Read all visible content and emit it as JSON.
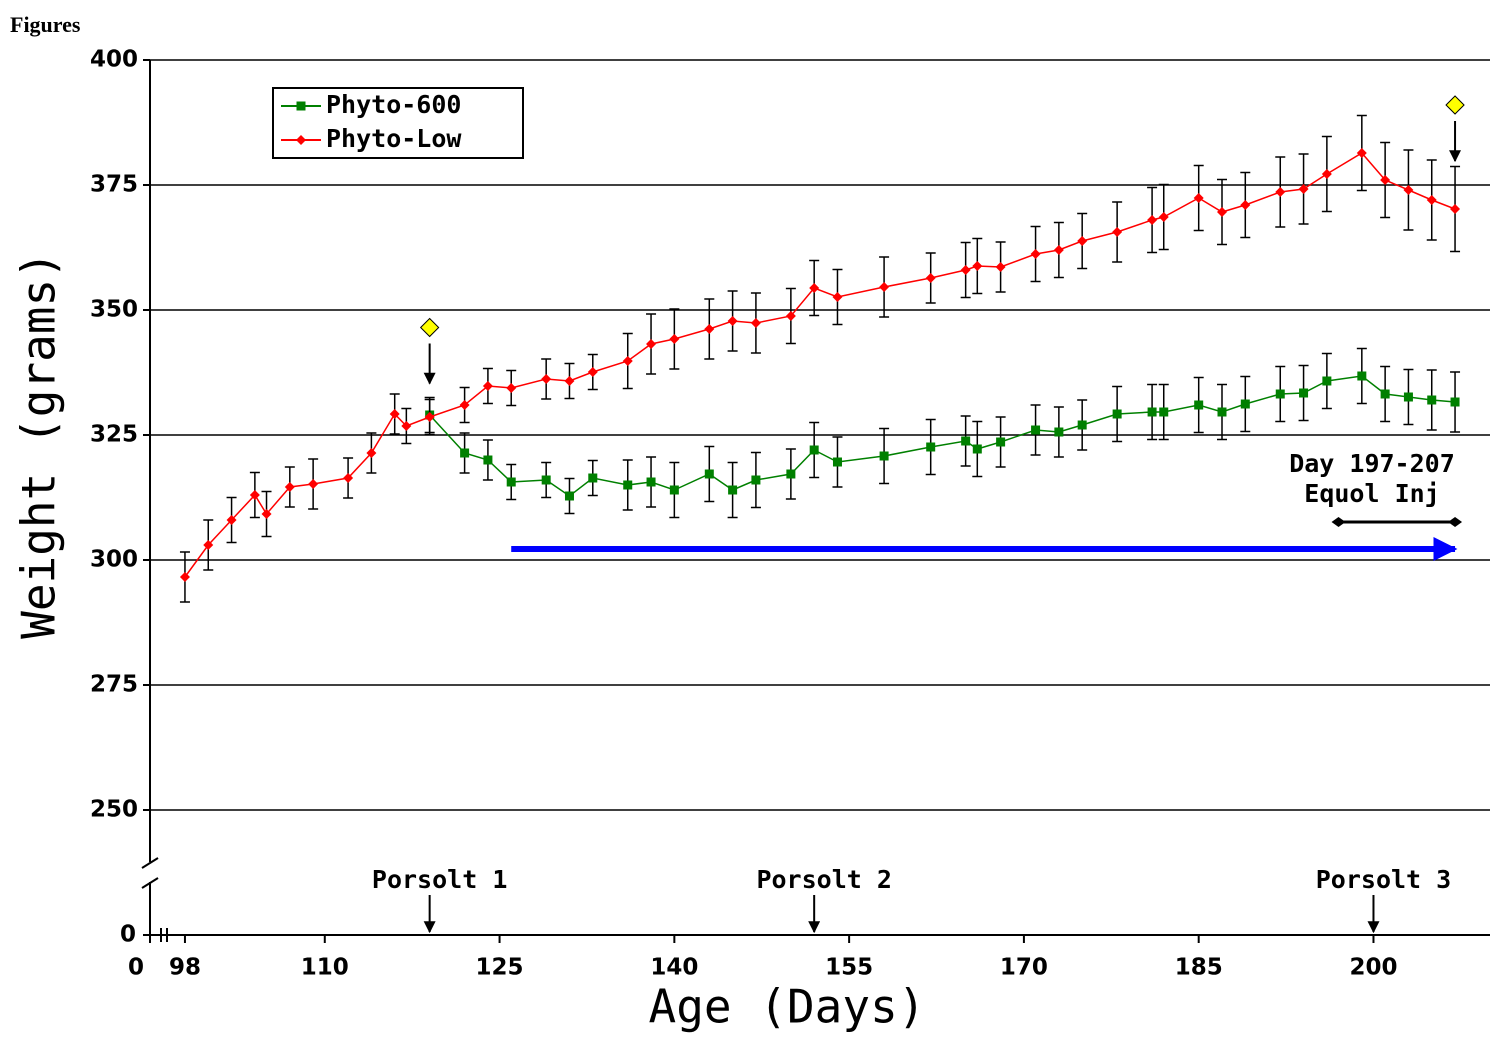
{
  "header": {
    "title": "Figures"
  },
  "chart_data": {
    "type": "line",
    "xlabel": "Age (Days)",
    "ylabel": "Weight (grams)",
    "xlim": [
      95,
      210
    ],
    "xticks": [
      98,
      110,
      125,
      140,
      155,
      170,
      185,
      200
    ],
    "xticks_below_break": [
      0
    ],
    "ylim": [
      235,
      400
    ],
    "yticks": [
      250,
      275,
      300,
      325,
      350,
      375,
      400
    ],
    "yticks_below_break": [
      0
    ],
    "grid": true,
    "legend": "upper left",
    "series": [
      {
        "name": "Phyto-600",
        "color": "#008000",
        "marker": "square",
        "x": [
          119,
          122,
          124,
          126,
          129,
          131,
          133,
          136,
          138,
          140,
          143,
          145,
          147,
          150,
          152,
          154,
          158,
          162,
          165,
          166,
          168,
          171,
          173,
          175,
          178,
          181,
          182,
          185,
          187,
          189,
          192,
          194,
          196,
          199,
          201,
          203,
          205,
          207
        ],
        "values": [
          329,
          321.4,
          320,
          315.6,
          316,
          312.8,
          316.4,
          315,
          315.6,
          314,
          317.2,
          314,
          316,
          317.2,
          322,
          319.6,
          320.8,
          322.6,
          323.8,
          322.2,
          323.6,
          326,
          325.6,
          327,
          329.2,
          329.6,
          329.6,
          331,
          329.6,
          331.2,
          333.2,
          333.4,
          335.8,
          336.8,
          333.2,
          332.6,
          332,
          331.6
        ],
        "errors": [
          3.5,
          4,
          4,
          3.5,
          3.5,
          3.5,
          3.5,
          5,
          5,
          5.5,
          5.5,
          5.5,
          5.5,
          5,
          5.5,
          5,
          5.5,
          5.5,
          5,
          5.5,
          5,
          5,
          5,
          5,
          5.5,
          5.5,
          5.5,
          5.5,
          5.5,
          5.5,
          5.5,
          5.5,
          5.5,
          5.5,
          5.5,
          5.5,
          6,
          6
        ]
      },
      {
        "name": "Phyto-Low",
        "color": "#ff0000",
        "marker": "diamond",
        "x": [
          98,
          100,
          102,
          104,
          105,
          107,
          109,
          112,
          114,
          116,
          117,
          119,
          122,
          124,
          126,
          129,
          131,
          133,
          136,
          138,
          140,
          143,
          145,
          147,
          150,
          152,
          154,
          158,
          162,
          165,
          166,
          168,
          171,
          173,
          175,
          178,
          181,
          182,
          185,
          187,
          189,
          192,
          194,
          196,
          199,
          201,
          203,
          205,
          207
        ],
        "values": [
          296.6,
          303,
          308,
          313,
          309.2,
          314.6,
          315.2,
          316.4,
          321.4,
          329.2,
          326.8,
          328.6,
          331,
          334.8,
          334.4,
          336.2,
          335.8,
          337.6,
          339.8,
          343.2,
          344.2,
          346.2,
          347.8,
          347.4,
          348.8,
          354.4,
          352.6,
          354.6,
          356.4,
          358,
          358.8,
          358.6,
          361.2,
          362,
          363.8,
          365.6,
          368,
          368.6,
          372.4,
          369.6,
          371,
          373.6,
          374.2,
          377.2,
          381.4,
          376,
          374,
          372,
          370.2
        ],
        "errors": [
          5,
          5,
          4.5,
          4.5,
          4.5,
          4,
          5,
          4,
          4,
          4,
          3.5,
          3.5,
          3.5,
          3.5,
          3.5,
          4,
          3.5,
          3.5,
          5.5,
          6,
          6,
          6,
          6,
          6,
          5.5,
          5.5,
          5.5,
          6,
          5,
          5.5,
          5.5,
          5,
          5.5,
          5.5,
          5.5,
          6,
          6.5,
          6.5,
          6.5,
          6.5,
          6.5,
          7,
          7,
          7.5,
          7.5,
          7.5,
          8,
          8,
          8.5
        ]
      }
    ],
    "porsolt": [
      {
        "text": "Porsolt 1",
        "x": 119
      },
      {
        "text": "Porsolt 2",
        "x": 152
      },
      {
        "text": "Porsolt 3",
        "x": 200
      }
    ],
    "markers": [
      {
        "x": 119,
        "y": 346.5,
        "color": "#ffff00"
      },
      {
        "x": 207,
        "y": 391,
        "color": "#ffff00"
      }
    ],
    "treatment_span": {
      "x": [
        126,
        207
      ],
      "y": 302.2,
      "color": "#0000ff"
    },
    "equol": {
      "lines": [
        "Day 197-207",
        "Equol Inj"
      ],
      "x": [
        197,
        207
      ],
      "y": 307.6
    }
  }
}
